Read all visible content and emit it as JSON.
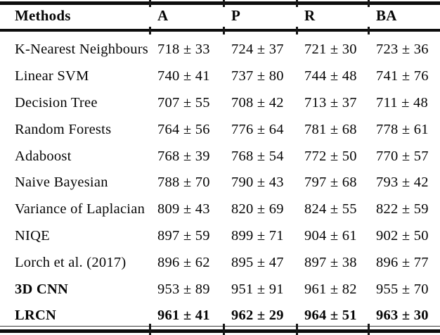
{
  "table": {
    "columns": [
      "Methods",
      "A",
      "P",
      "R",
      "BA"
    ],
    "rows": [
      {
        "method": "K-Nearest Neighbours",
        "values": [
          "718 ± 33",
          "724 ± 37",
          "721 ± 30",
          "723 ± 36"
        ]
      },
      {
        "method": "Linear SVM",
        "values": [
          "740 ± 41",
          "737 ± 80",
          "744 ± 48",
          "741 ± 76"
        ]
      },
      {
        "method": "Decision Tree",
        "values": [
          "707 ± 55",
          "708 ± 42",
          "713 ± 37",
          "711 ± 48"
        ]
      },
      {
        "method": "Random Forests",
        "values": [
          "764 ± 56",
          "776 ± 64",
          "781 ± 68",
          "778 ± 61"
        ]
      },
      {
        "method": "Adaboost",
        "values": [
          "768 ± 39",
          "768 ± 54",
          "772 ± 50",
          "770 ± 57"
        ]
      },
      {
        "method": "Naive Bayesian",
        "values": [
          "788 ± 70",
          "790 ± 43",
          "797 ± 68",
          "793 ± 42"
        ]
      },
      {
        "method": "Variance of Laplacian",
        "values": [
          "809 ± 43",
          "820 ± 69",
          "824 ± 55",
          "822 ± 59"
        ]
      },
      {
        "method": "NIQE",
        "values": [
          "897 ± 59",
          "899 ± 71",
          "904 ± 61",
          "902 ± 50"
        ]
      },
      {
        "method": "Lorch et al. (2017)",
        "values": [
          "896 ± 62",
          "895 ± 47",
          "897 ± 38",
          "896 ± 77"
        ]
      },
      {
        "method": "3D CNN",
        "values": [
          "953 ± 89",
          "951 ± 91",
          "961 ± 82",
          "955 ± 70"
        ]
      },
      {
        "method": "LRCN",
        "values": [
          "961 ± 41",
          "962 ± 29",
          "964 ± 51",
          "963 ± 30"
        ]
      }
    ],
    "colors": {
      "text": "#060606",
      "rule": "#0d0d0d",
      "background": "#ffffff"
    }
  }
}
